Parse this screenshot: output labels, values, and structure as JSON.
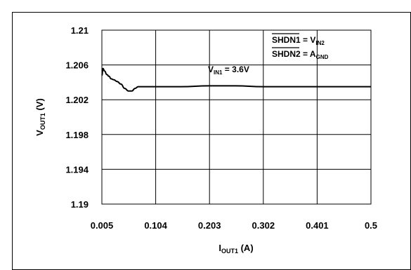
{
  "chart_data": {
    "type": "line",
    "title": "",
    "xlabel": "I",
    "xlabel_sub": "OUT1",
    "xlabel_unit": " (A)",
    "ylabel": "V",
    "ylabel_sub": "OUT1",
    "ylabel_unit": " (V)",
    "xlim": [
      0.005,
      0.5
    ],
    "ylim": [
      1.19,
      1.21
    ],
    "x_ticks": [
      "0.005",
      "0.104",
      "0.203",
      "0.302",
      "0.401",
      "0.5"
    ],
    "y_ticks": [
      "1.21",
      "1.206",
      "1.202",
      "1.198",
      "1.194",
      "1.19"
    ],
    "grid": true,
    "series": [
      {
        "name": "VIN1 = 3.6V",
        "x": [
          0.005,
          0.007,
          0.01,
          0.014,
          0.018,
          0.022,
          0.027,
          0.033,
          0.04,
          0.047,
          0.054,
          0.06,
          0.066,
          0.072,
          0.08,
          0.1,
          0.15,
          0.203,
          0.25,
          0.302,
          0.35,
          0.401,
          0.45,
          0.5
        ],
        "y": [
          1.2048,
          1.2056,
          1.2053,
          1.2049,
          1.2047,
          1.2044,
          1.2043,
          1.2041,
          1.2038,
          1.2033,
          1.203,
          1.203,
          1.2033,
          1.2035,
          1.2035,
          1.2035,
          1.2035,
          1.2036,
          1.2036,
          1.2035,
          1.2035,
          1.2035,
          1.2035,
          1.2035
        ],
        "color": "#000000"
      }
    ],
    "annotations": {
      "curve_label": {
        "main": "V",
        "sub": "IN1",
        "rest": " = 3.6V"
      },
      "condition1": {
        "bar": "SHDN1",
        "mid": " = V",
        "sub": "IN2"
      },
      "condition2": {
        "bar": "SHDN2",
        "mid": " = A",
        "sub": "GND"
      }
    }
  }
}
